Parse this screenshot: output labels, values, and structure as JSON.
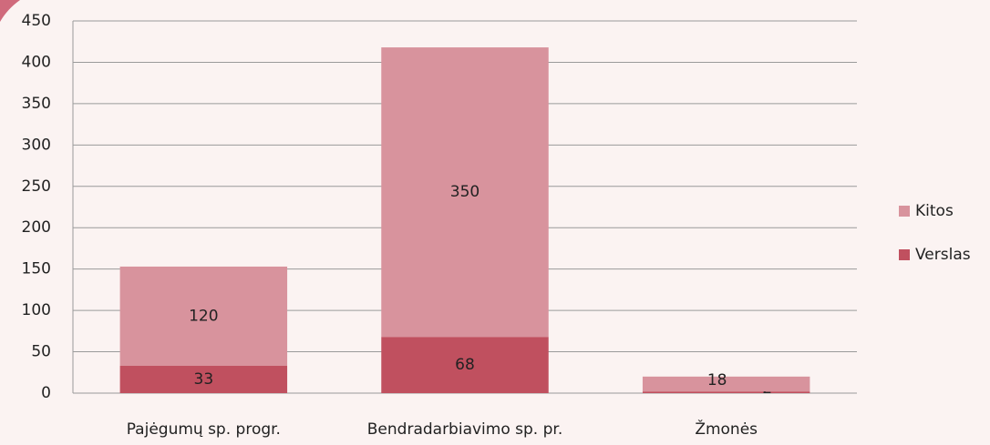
{
  "chart_data": {
    "type": "stacked_bar",
    "categories": [
      "Pajėgumų sp. progr.",
      "Bendradarbiavimo sp. pr.",
      "Žmonės"
    ],
    "series": [
      {
        "name": "Verslas",
        "color": "#c0505f",
        "values": [
          33,
          68,
          2
        ]
      },
      {
        "name": "Kitos",
        "color": "#d8939d",
        "values": [
          120,
          350,
          18
        ]
      }
    ],
    "ylim": [
      0,
      450
    ],
    "yticks": [
      0,
      50,
      100,
      150,
      200,
      250,
      300,
      350,
      400,
      450
    ],
    "grid": true,
    "legend": "right"
  }
}
